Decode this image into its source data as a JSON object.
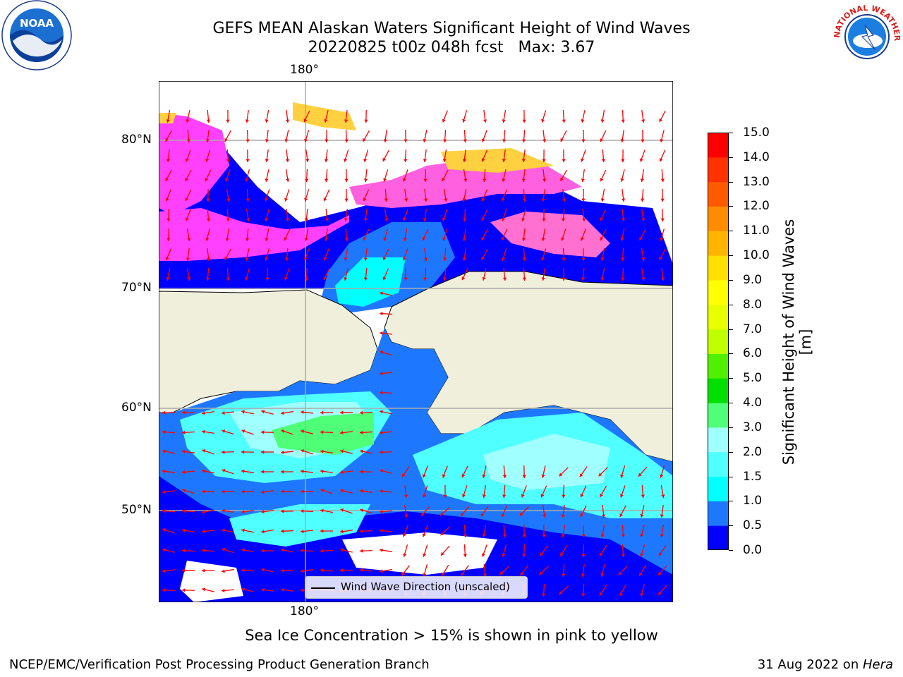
{
  "header": {
    "title_line1": "GEFS MEAN Alaskan Waters Significant Height of Wind Waves",
    "title_line2": "20220825 t00z 048h fcst   Max: 3.67"
  },
  "logos": {
    "noaa": {
      "text": "NOAA",
      "icon": "noaa-seal-icon"
    },
    "nws": {
      "text": "NATIONAL WEATHER SERVICE",
      "icon": "nws-seal-icon"
    }
  },
  "map": {
    "lon_label_top": "180°",
    "lon_label_bottom": "180°",
    "lat_labels": [
      "80°N",
      "70°N",
      "60°N",
      "50°N"
    ],
    "land_color": "#efefdc",
    "ice_colors": [
      "#ff40ff",
      "#ff80c0",
      "#ffd040"
    ]
  },
  "legend": {
    "label": "Wind Wave Direction (unscaled)",
    "arrow_color": "#ff0000"
  },
  "colorbar": {
    "title": "Significant Height of Wind Waves [m]",
    "levels": [
      "0.0",
      "0.5",
      "1.0",
      "1.5",
      "2.0",
      "3.0",
      "4.0",
      "5.0",
      "6.0",
      "7.0",
      "8.0",
      "9.0",
      "10.0",
      "11.0",
      "12.0",
      "13.0",
      "14.0",
      "15.0"
    ],
    "colors": [
      "#0000ff",
      "#1e78ff",
      "#00ffff",
      "#50ffff",
      "#a0ffff",
      "#50ff78",
      "#00e000",
      "#50f000",
      "#c0ff00",
      "#e8ff00",
      "#ffff00",
      "#ffe000",
      "#ffb400",
      "#ff8c00",
      "#ff5a00",
      "#ff3200",
      "#ff0000"
    ]
  },
  "note": "Sea Ice Concentration > 15% is shown in pink to yellow",
  "footer": {
    "left": "NCEP/EMC/Verification Post Processing Product Generation Branch",
    "date": "31 Aug 2022 on ",
    "host": "Hera"
  }
}
